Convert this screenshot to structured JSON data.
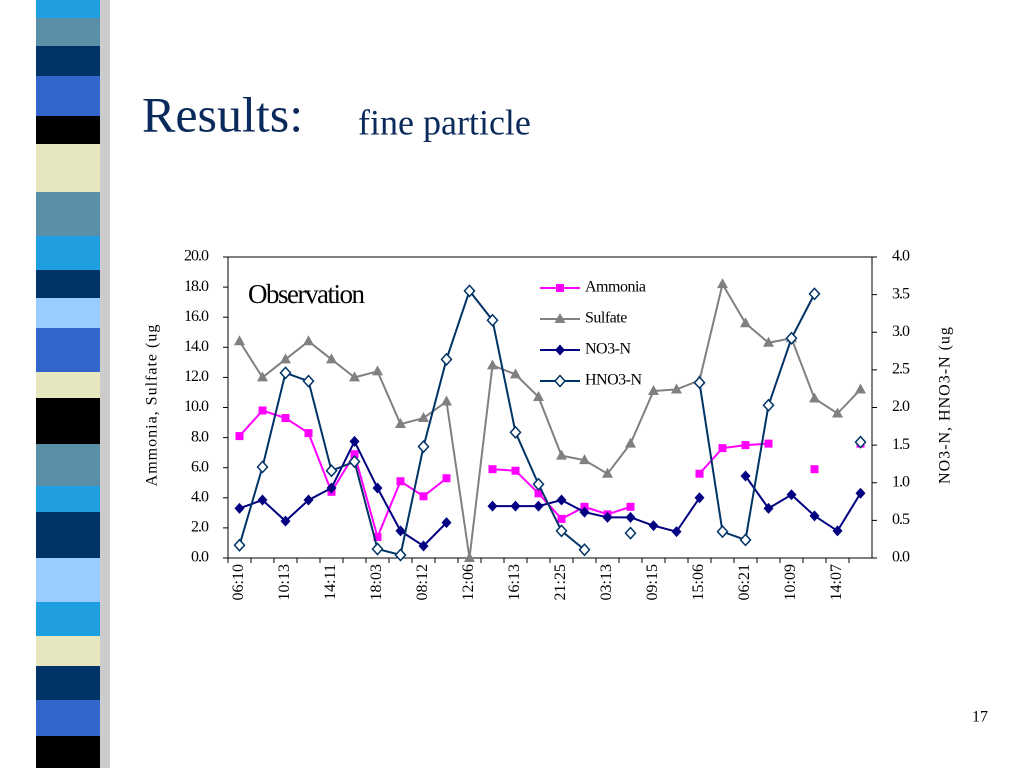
{
  "title": "Results:",
  "subtitle": "fine particle",
  "page_number": "17",
  "chart_data": {
    "type": "line",
    "annotation": "Observation",
    "y_label": "Ammonia, Sulfate (ug",
    "y2_label": "NO3-N, HNO3-N (ug",
    "categories": [
      "06:10",
      null,
      "10:13",
      null,
      "14:11",
      null,
      "18:03",
      null,
      "08:12",
      null,
      "12:06",
      null,
      "16:13",
      null,
      "21:25",
      null,
      "03:13",
      null,
      "09:15",
      null,
      "15:06",
      null,
      "06:21",
      null,
      "10:09",
      null,
      "14:07",
      null
    ],
    "ylim": [
      0,
      20
    ],
    "yticks": [
      {
        "value": 0,
        "label": "0.0"
      },
      {
        "value": 2,
        "label": "2.0"
      },
      {
        "value": 4,
        "label": "4.0"
      },
      {
        "value": 6,
        "label": "6.0"
      },
      {
        "value": 8,
        "label": "8.0"
      },
      {
        "value": 10,
        "label": "10.0"
      },
      {
        "value": 12,
        "label": "12.0"
      },
      {
        "value": 14,
        "label": "14.0"
      },
      {
        "value": 16,
        "label": "16.0"
      },
      {
        "value": 18,
        "label": "18.0"
      },
      {
        "value": 20,
        "label": "20.0"
      }
    ],
    "y2lim": [
      0,
      4
    ],
    "y2ticks": [
      {
        "value": 0,
        "label": "0.0"
      },
      {
        "value": 0.5,
        "label": "0.5"
      },
      {
        "value": 1,
        "label": "1.0"
      },
      {
        "value": 1.5,
        "label": "1.5"
      },
      {
        "value": 2,
        "label": "2.0"
      },
      {
        "value": 2.5,
        "label": "2.5"
      },
      {
        "value": 3,
        "label": "3.0"
      },
      {
        "value": 3.5,
        "label": "3.5"
      },
      {
        "value": 4,
        "label": "4.0"
      }
    ],
    "legend": "upper right",
    "series": [
      {
        "name": "Ammonia",
        "color": "#ff00ff",
        "marker": "square",
        "values": [
          8.1,
          9.8,
          9.3,
          8.3,
          4.4,
          6.9,
          1.4,
          5.1,
          4.1,
          5.3,
          null,
          5.9,
          5.8,
          4.3,
          2.6,
          3.4,
          2.9,
          3.4,
          null,
          null,
          5.6,
          7.3,
          7.5,
          7.6,
          null,
          5.9,
          null,
          7.6
        ]
      },
      {
        "name": "Sulfate",
        "color": "#808080",
        "marker": "triangle",
        "values": [
          14.4,
          12.0,
          13.2,
          14.4,
          13.2,
          12.0,
          12.4,
          8.9,
          9.3,
          10.4,
          0,
          12.8,
          12.2,
          10.7,
          6.8,
          6.5,
          5.6,
          7.6,
          11.1,
          11.2,
          11.8,
          18.2,
          15.6,
          14.3,
          14.6,
          10.6,
          9.6,
          11.2
        ]
      },
      {
        "name": "NO3-N",
        "color": "#000080",
        "marker": "diamond",
        "axis": "y2",
        "values": [
          0.66,
          0.77,
          0.49,
          0.77,
          0.93,
          1.55,
          0.93,
          0.36,
          0.16,
          0.47,
          null,
          0.69,
          0.69,
          0.69,
          0.77,
          0.61,
          0.54,
          0.54,
          0.43,
          0.35,
          0.8,
          null,
          1.09,
          0.66,
          0.84,
          0.56,
          0.36,
          0.86
        ]
      },
      {
        "name": "HNO3-N",
        "color": "#003366",
        "marker": "open-diamond",
        "axis": "y2",
        "values": [
          0.17,
          1.21,
          2.46,
          2.35,
          1.16,
          1.28,
          0.12,
          0.04,
          1.48,
          2.64,
          3.55,
          3.16,
          1.67,
          0.98,
          0.36,
          0.11,
          null,
          0.33,
          null,
          null,
          2.33,
          0.35,
          0.24,
          2.03,
          2.92,
          3.51,
          null,
          1.54
        ]
      }
    ]
  }
}
